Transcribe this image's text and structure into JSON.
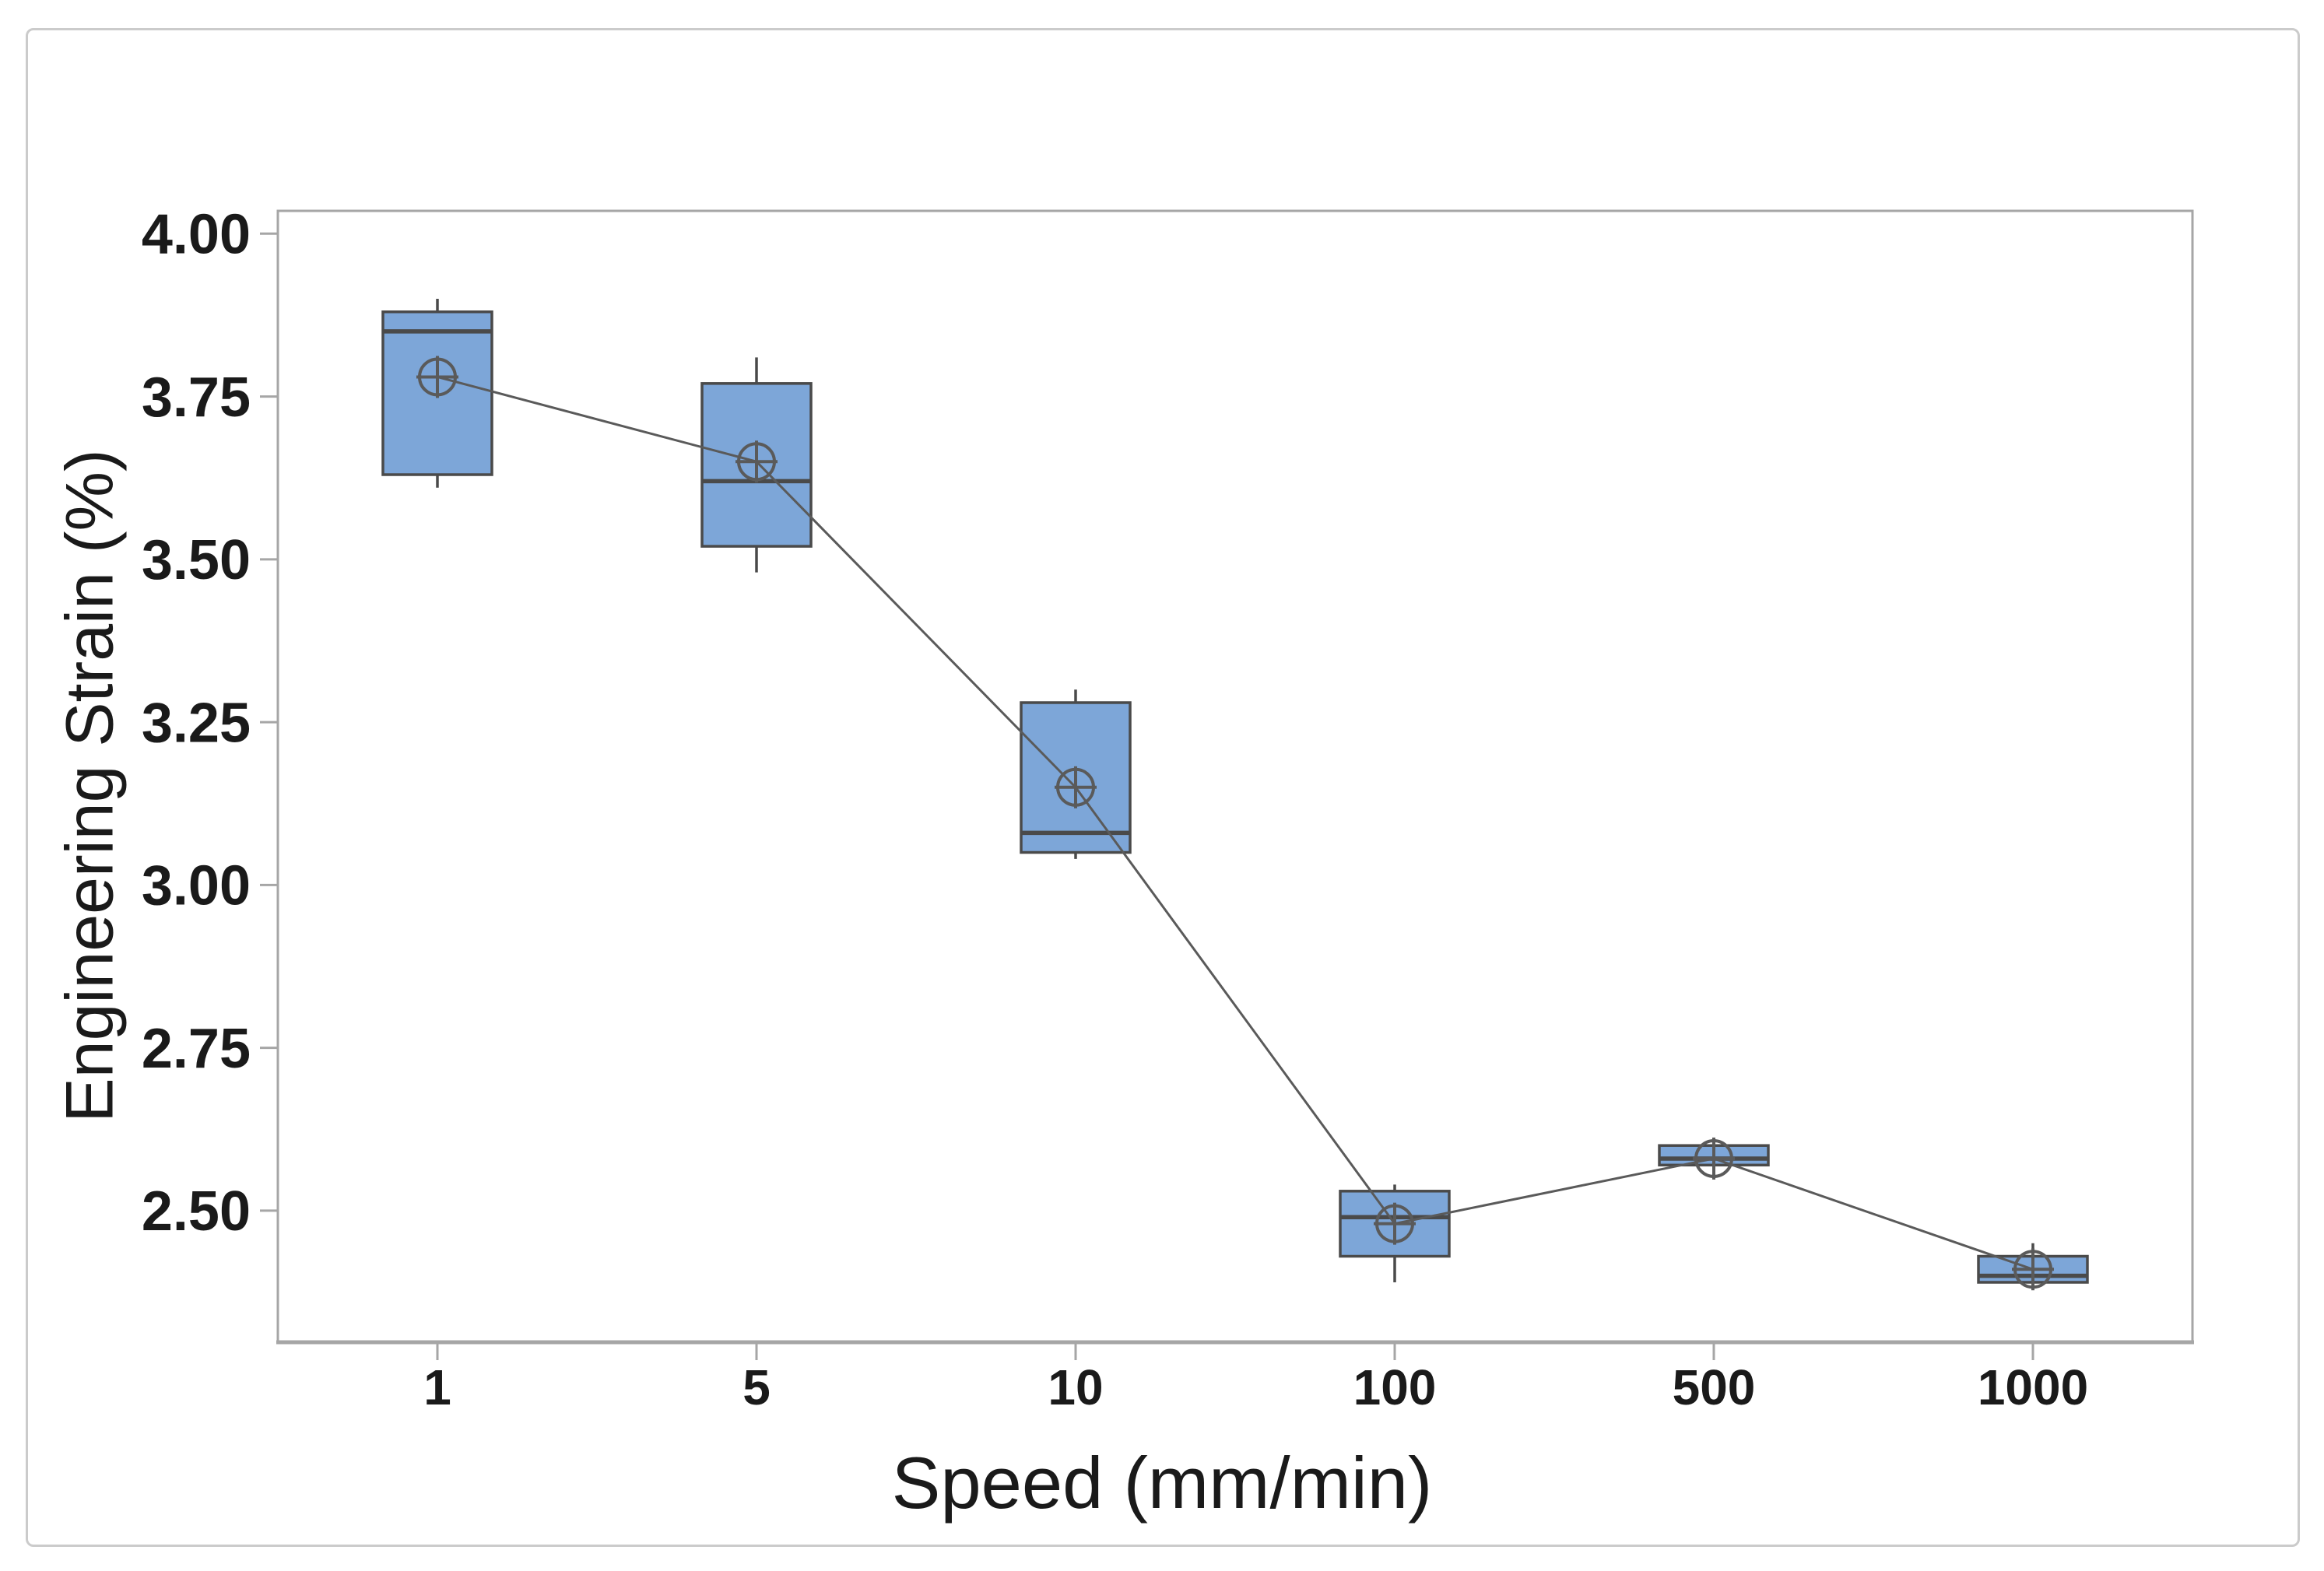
{
  "figure": {
    "background_color": "#ffffff",
    "border_color": "#cbcbcb",
    "plot_background": "#ffffff"
  },
  "chart_data": {
    "type": "boxplot",
    "title": "",
    "xlabel": "Speed (mm/min)",
    "ylabel": "Engineering Strain (%)",
    "categories": [
      "1",
      "5",
      "10",
      "100",
      "500",
      "1000"
    ],
    "y_ticks": [
      "4.00",
      "3.75",
      "3.50",
      "3.25",
      "3.00",
      "2.75",
      "2.50"
    ],
    "ylim": [
      2.298,
      4.035
    ],
    "grid": "off",
    "legend": "none",
    "boxes": [
      {
        "category": "1",
        "whisker_low": 3.61,
        "q1": 3.63,
        "median": 3.85,
        "q3": 3.88,
        "whisker_high": 3.9,
        "mean": 3.78
      },
      {
        "category": "5",
        "whisker_low": 3.48,
        "q1": 3.52,
        "median": 3.62,
        "q3": 3.77,
        "whisker_high": 3.81,
        "mean": 3.65
      },
      {
        "category": "10",
        "whisker_low": 3.04,
        "q1": 3.05,
        "median": 3.08,
        "q3": 3.28,
        "whisker_high": 3.3,
        "mean": 3.15
      },
      {
        "category": "100",
        "whisker_low": 2.39,
        "q1": 2.43,
        "median": 2.49,
        "q3": 2.53,
        "whisker_high": 2.54,
        "mean": 2.48
      },
      {
        "category": "500",
        "whisker_low": 2.57,
        "q1": 2.57,
        "median": 2.58,
        "q3": 2.6,
        "whisker_high": 2.6,
        "mean": 2.58
      },
      {
        "category": "1000",
        "whisker_low": 2.38,
        "q1": 2.39,
        "median": 2.4,
        "q3": 2.43,
        "whisker_high": 2.45,
        "mean": 2.41
      }
    ],
    "mean_connect_line": [
      3.78,
      3.65,
      3.15,
      2.48,
      2.58,
      2.41
    ],
    "colors": {
      "box_fill": "#7da6d8",
      "box_border": "#4a4a4a",
      "axis": "#a6a6a6",
      "text": "#1a1a1a",
      "mean_line": "#5a5a5a"
    }
  }
}
